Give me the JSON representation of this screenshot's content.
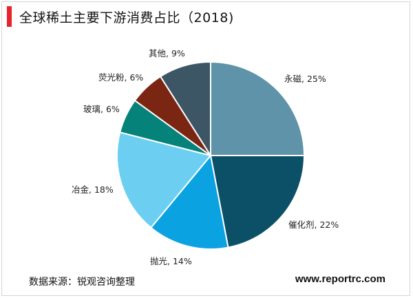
{
  "header": {
    "title": "全球稀土主要下游消费占比（2018)"
  },
  "chart_data": {
    "type": "pie",
    "title": "全球稀土主要下游消费占比（2018)",
    "slices": [
      {
        "label": "永磁, 25%",
        "name": "永磁",
        "value": 25,
        "color": "#5f93a9"
      },
      {
        "label": "催化剂, 22%",
        "name": "催化剂",
        "value": 22,
        "color": "#0c5068"
      },
      {
        "label": "抛光, 14%",
        "name": "抛光",
        "value": 14,
        "color": "#0aa2e0"
      },
      {
        "label": "冶金, 18%",
        "name": "冶金",
        "value": 18,
        "color": "#6ccff2"
      },
      {
        "label": "玻璃, 6%",
        "name": "玻璃",
        "value": 6,
        "color": "#05827a"
      },
      {
        "label": "荧光粉, 6%",
        "name": "荧光粉",
        "value": 6,
        "color": "#7b2612"
      },
      {
        "label": "其他, 9%",
        "name": "其他",
        "value": 9,
        "color": "#3c5666"
      }
    ]
  },
  "footer": {
    "source": "数据来源：锐观咨询整理",
    "site": "www.reportrc.com"
  }
}
